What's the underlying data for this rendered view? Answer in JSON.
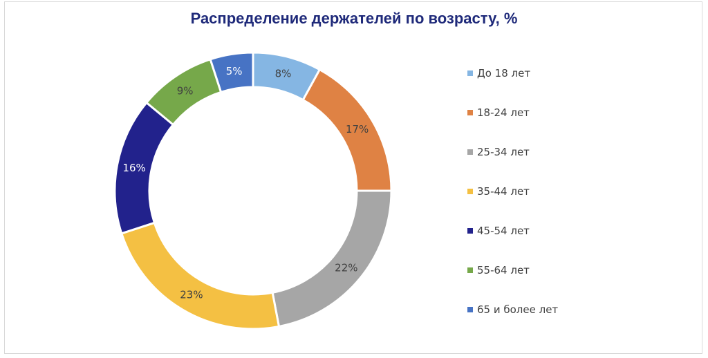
{
  "chart_data": {
    "type": "pie",
    "variant": "donut",
    "title": "Распределение держателей по возрасту, %",
    "categories": [
      "До 18 лет",
      "18-24 лет",
      "25-34 лет",
      "35-44 лет",
      "45-54 лет",
      "55-64 лет",
      "65 и более лет"
    ],
    "values": [
      8,
      17,
      22,
      23,
      16,
      9,
      5
    ],
    "labels": [
      "8%",
      "17%",
      "22%",
      "23%",
      "16%",
      "9%",
      "5%"
    ],
    "colors": [
      "#85b6e3",
      "#df8244",
      "#a6a6a6",
      "#f4c043",
      "#22228c",
      "#76a84a",
      "#4773c4"
    ],
    "label_colors": [
      "#404040",
      "#404040",
      "#404040",
      "#404040",
      "#ffffff",
      "#404040",
      "#ffffff"
    ],
    "legend_position": "right"
  }
}
